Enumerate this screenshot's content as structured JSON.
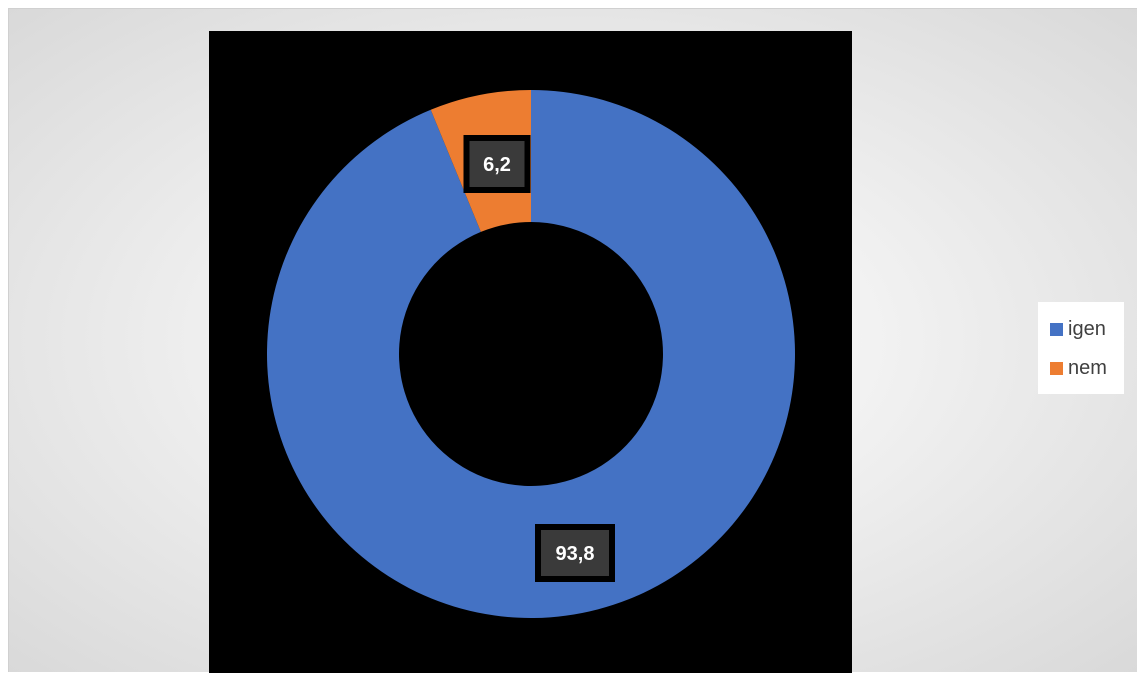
{
  "chart_data": {
    "type": "pie",
    "variant": "donut",
    "categories": [
      "igen",
      "nem"
    ],
    "values": [
      93.8,
      6.2
    ],
    "data_labels": [
      "93,8",
      "6,2"
    ],
    "colors": [
      "#4472C4",
      "#ED7D31"
    ],
    "title": "",
    "legend": {
      "position": "right",
      "entries": [
        "igen",
        "nem"
      ]
    },
    "plot_background": "#000000"
  }
}
